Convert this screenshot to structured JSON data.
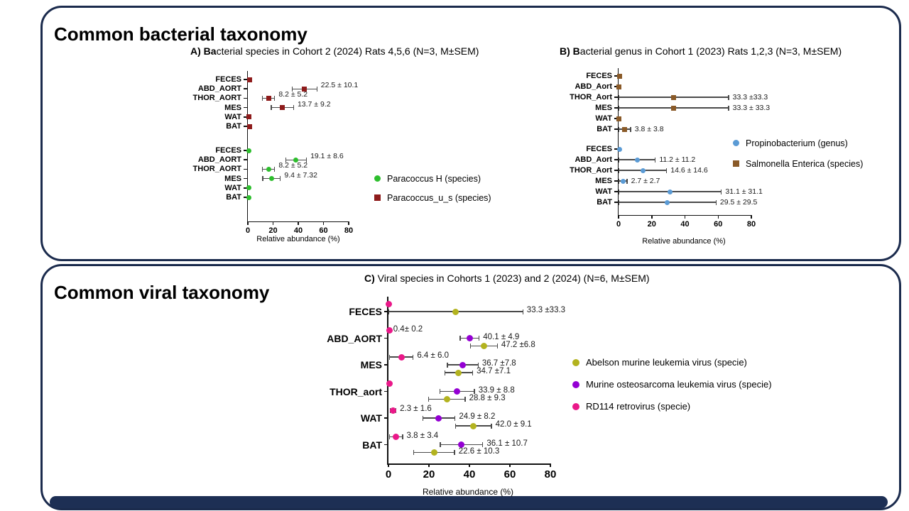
{
  "page": {
    "panel1_title": "Common bacterial taxonomy",
    "panel2_title": "Common viral taxonomy",
    "panel_border_color": "#1b2b4d",
    "bottom_bar_color": "#1d2f54",
    "background": "#ffffff"
  },
  "chart_data": [
    {
      "id": "chart-a",
      "type": "scatter",
      "orientation": "horizontal",
      "error_bars": "SEM",
      "title_bold": "A) Ba",
      "title_rest": "cterial species  in Cohort 2 (2024) Rats 4,5,6 (N=3, M±SEM)",
      "xlabel": "Relative abundance (%)",
      "xlim": [
        0,
        80
      ],
      "xticks": [
        0,
        20,
        40,
        60,
        80
      ],
      "grid": false,
      "legend_position": "right",
      "plot_value_multiplier": 2,
      "legend": [
        {
          "label": "Paracoccus H (species)",
          "color": "#2dbe2d",
          "marker": "circle"
        },
        {
          "label": "Paracoccus_u_s (species)",
          "color": "#8e1b1b",
          "marker": "square"
        }
      ],
      "groups": [
        {
          "series": "Paracoccus_u_s (species)",
          "color": "#8e1b1b",
          "marker": "square",
          "rows": [
            {
              "cat": "FECES",
              "value": 0.8,
              "sem": 0.5,
              "label": ""
            },
            {
              "cat": "ABD_AORT",
              "value": 22.5,
              "sem": 10.1,
              "label": "22.5 ± 10.1"
            },
            {
              "cat": "THOR_AORT",
              "value": 8.2,
              "sem": 5.2,
              "label": "8.2 ± 5.2"
            },
            {
              "cat": "MES",
              "value": 13.7,
              "sem": 9.2,
              "label": "13.7 ± 9.2"
            },
            {
              "cat": "WAT",
              "value": 0.5,
              "sem": 0.3,
              "label": ""
            },
            {
              "cat": "BAT",
              "value": 0.8,
              "sem": 0.5,
              "label": ""
            }
          ]
        },
        {
          "series": "Paracoccus H (species)",
          "color": "#2dbe2d",
          "marker": "circle",
          "rows": [
            {
              "cat": "FECES",
              "value": 0.4,
              "sem": 0.3,
              "label": ""
            },
            {
              "cat": "ABD_AORT",
              "value": 19.1,
              "sem": 8.6,
              "label": "19.1 ± 8.6"
            },
            {
              "cat": "THOR_AORT",
              "value": 8.2,
              "sem": 5.2,
              "label": "8.2 ± 5.2"
            },
            {
              "cat": "MES",
              "value": 9.4,
              "sem": 7.32,
              "label": "9.4 ± 7.32"
            },
            {
              "cat": "WAT",
              "value": 0.4,
              "sem": 0.3,
              "label": ""
            },
            {
              "cat": "BAT",
              "value": 0.4,
              "sem": 0.3,
              "label": ""
            }
          ]
        }
      ]
    },
    {
      "id": "chart-b",
      "type": "scatter",
      "orientation": "horizontal",
      "error_bars": "SEM",
      "title_bold": "B) B",
      "title_rest": "acterial genus in Cohort 1 (2023) Rats 1,2,3 (N=3, M±SEM)",
      "xlabel": "Relative abundance (%)",
      "xlim": [
        0,
        80
      ],
      "xticks": [
        0,
        20,
        40,
        60,
        80
      ],
      "grid": false,
      "legend_position": "right",
      "plot_value_multiplier": 1,
      "legend": [
        {
          "label": "Propinobacterium (genus)",
          "color": "#5b9bd5",
          "marker": "circle"
        },
        {
          "label": "Salmonella Enterica (species)",
          "color": "#8a5a28",
          "marker": "square"
        }
      ],
      "groups": [
        {
          "series": "Salmonella Enterica (species)",
          "color": "#8a5a28",
          "marker": "square",
          "rows": [
            {
              "cat": "FECES",
              "value": 0.8,
              "sem": 0.6,
              "label": ""
            },
            {
              "cat": "ABD_Aort",
              "value": 0.4,
              "sem": 0.3,
              "label": ""
            },
            {
              "cat": "THOR_Aort",
              "value": 33.3,
              "sem": 33.3,
              "label": "33.3 ±33.3"
            },
            {
              "cat": "MES",
              "value": 33.3,
              "sem": 33.3,
              "label": "33.3 ± 33.3"
            },
            {
              "cat": "WAT",
              "value": 0.3,
              "sem": 0.2,
              "label": ""
            },
            {
              "cat": "BAT",
              "value": 3.8,
              "sem": 3.8,
              "label": "3.8 ± 3.8"
            }
          ]
        },
        {
          "series": "Propinobacterium (genus)",
          "color": "#5b9bd5",
          "marker": "circle",
          "rows": [
            {
              "cat": "FECES",
              "value": 0.5,
              "sem": 0.4,
              "label": ""
            },
            {
              "cat": "ABD_Aort",
              "value": 11.2,
              "sem": 11.2,
              "label": "11.2 ± 11.2"
            },
            {
              "cat": "THOR_Aort",
              "value": 14.6,
              "sem": 14.6,
              "label": "14.6 ± 14.6"
            },
            {
              "cat": "MES",
              "value": 2.7,
              "sem": 2.7,
              "label": "2.7 ± 2.7"
            },
            {
              "cat": "WAT",
              "value": 31.1,
              "sem": 31.1,
              "label": "31.1 ± 31.1"
            },
            {
              "cat": "BAT",
              "value": 29.5,
              "sem": 29.5,
              "label": "29.5 ± 29.5"
            }
          ]
        }
      ]
    },
    {
      "id": "chart-c",
      "type": "scatter",
      "orientation": "horizontal",
      "error_bars": "SEM",
      "title_bold": "C)",
      "title_rest": " Viral species in Cohorts 1 (2023) and 2 (2024) (N=6, M±SEM)",
      "xlabel": "Relative abundance (%)",
      "xlim": [
        0,
        80
      ],
      "xticks": [
        0,
        20,
        40,
        60,
        80
      ],
      "grid": false,
      "legend_position": "right",
      "plot_value_multiplier": 1,
      "legend": [
        {
          "label": "Abelson murine leukemia virus (specie)",
          "color": "#b3b31f",
          "marker": "circle"
        },
        {
          "label": "Murine osteosarcoma leukemia virus (specie)",
          "color": "#9400d3",
          "marker": "circle"
        },
        {
          "label": "RD114 retrovirus (specie)",
          "color": "#ea1889",
          "marker": "circle"
        }
      ],
      "blocks": [
        {
          "cat": "FECES",
          "points": [
            {
              "series": "RD114 retrovirus (specie)",
              "color": "#ea1889",
              "value": 0.3,
              "sem": 0.2,
              "label": ""
            },
            {
              "series": "Abelson murine leukemia virus (specie)",
              "color": "#b3b31f",
              "value": 33.3,
              "sem": 33.3,
              "label": "33.3 ±33.3"
            }
          ]
        },
        {
          "cat": "ABD_AORT",
          "points": [
            {
              "series": "RD114 retrovirus (specie)",
              "color": "#ea1889",
              "value": 0.4,
              "sem": 0.2,
              "label": "0.4± 0.2"
            },
            {
              "series": "Murine osteosarcoma leukemia virus (specie)",
              "color": "#9400d3",
              "value": 40.1,
              "sem": 4.9,
              "label": "40.1 ± 4.9"
            },
            {
              "series": "Abelson murine leukemia virus (specie)",
              "color": "#b3b31f",
              "value": 47.2,
              "sem": 6.8,
              "label": "47.2 ±6.8"
            }
          ]
        },
        {
          "cat": "MES",
          "points": [
            {
              "series": "RD114 retrovirus (specie)",
              "color": "#ea1889",
              "value": 6.4,
              "sem": 6.0,
              "label": "6.4 ± 6.0"
            },
            {
              "series": "Murine osteosarcoma leukemia virus (specie)",
              "color": "#9400d3",
              "value": 36.7,
              "sem": 7.8,
              "label": "36.7 ±7.8"
            },
            {
              "series": "Abelson murine leukemia virus (specie)",
              "color": "#b3b31f",
              "value": 34.7,
              "sem": 7.1,
              "label": "34.7 ±7.1"
            }
          ]
        },
        {
          "cat": "THOR_aort",
          "points": [
            {
              "series": "RD114 retrovirus (specie)",
              "color": "#ea1889",
              "value": 0.4,
              "sem": 0.3,
              "label": ""
            },
            {
              "series": "Murine osteosarcoma leukemia virus (specie)",
              "color": "#9400d3",
              "value": 33.9,
              "sem": 8.8,
              "label": "33.9 ± 8.8"
            },
            {
              "series": "Abelson murine leukemia virus (specie)",
              "color": "#b3b31f",
              "value": 28.8,
              "sem": 9.3,
              "label": "28.8 ± 9.3"
            }
          ]
        },
        {
          "cat": "WAT",
          "points": [
            {
              "series": "RD114 retrovirus (specie)",
              "color": "#ea1889",
              "value": 2.3,
              "sem": 1.6,
              "label": "2.3 ± 1.6"
            },
            {
              "series": "Murine osteosarcoma leukemia virus (specie)",
              "color": "#9400d3",
              "value": 24.9,
              "sem": 8.2,
              "label": "24.9 ± 8.2"
            },
            {
              "series": "Abelson murine leukemia virus (specie)",
              "color": "#b3b31f",
              "value": 42.0,
              "sem": 9.1,
              "label": "42.0 ± 9.1"
            }
          ]
        },
        {
          "cat": "BAT",
          "points": [
            {
              "series": "RD114 retrovirus (specie)",
              "color": "#ea1889",
              "value": 3.8,
              "sem": 3.4,
              "label": "3.8 ± 3.4"
            },
            {
              "series": "Murine osteosarcoma leukemia virus (specie)",
              "color": "#9400d3",
              "value": 36.1,
              "sem": 10.7,
              "label": "36.1 ± 10.7"
            },
            {
              "series": "Abelson murine leukemia virus (specie)",
              "color": "#b3b31f",
              "value": 22.6,
              "sem": 10.3,
              "label": "22.6 ± 10.3"
            }
          ]
        }
      ]
    }
  ]
}
